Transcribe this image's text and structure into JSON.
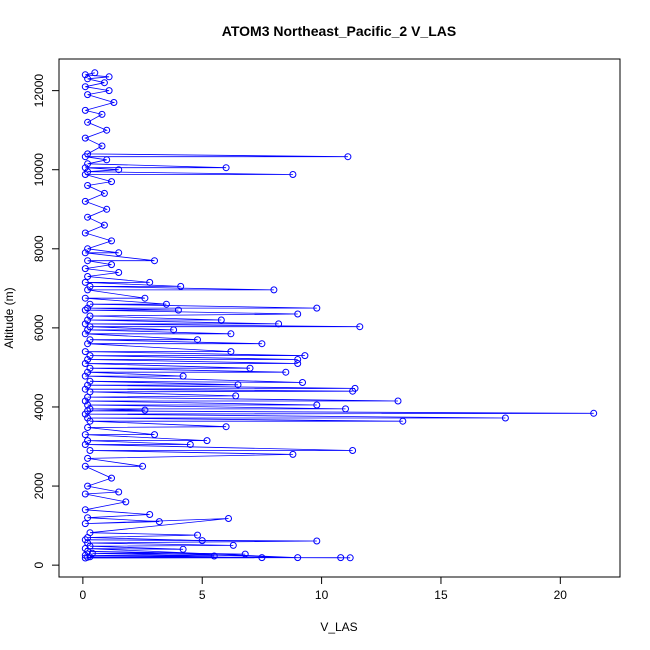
{
  "chart_data": {
    "type": "line",
    "title": "ATOM3 Northeast_Pacific_2 V_LAS",
    "xlabel": "V_LAS",
    "ylabel": "Altitude (m)",
    "xlim": [
      -1.0,
      22.5
    ],
    "ylim": [
      -300,
      12800
    ],
    "xticks": [
      0,
      5,
      10,
      15,
      20
    ],
    "yticks": [
      0,
      2000,
      4000,
      6000,
      8000,
      10000,
      12000
    ],
    "grid": false,
    "legend": "none",
    "series": [
      {
        "color": "#0000ff",
        "marker": "open-circle",
        "points": [
          [
            0.1,
            180
          ],
          [
            10.8,
            190
          ],
          [
            0.2,
            200
          ],
          [
            11.2,
            185
          ],
          [
            0.3,
            210
          ],
          [
            7.5,
            190
          ],
          [
            0.1,
            250
          ],
          [
            5.5,
            230
          ],
          [
            0.4,
            300
          ],
          [
            6.8,
            280
          ],
          [
            0.2,
            350
          ],
          [
            9.0,
            190
          ],
          [
            0.1,
            420
          ],
          [
            4.2,
            400
          ],
          [
            0.3,
            480
          ],
          [
            6.3,
            500
          ],
          [
            0.2,
            560
          ],
          [
            9.8,
            610
          ],
          [
            0.1,
            640
          ],
          [
            5.0,
            620
          ],
          [
            0.2,
            700
          ],
          [
            4.8,
            760
          ],
          [
            0.3,
            820
          ],
          [
            6.1,
            1180
          ],
          [
            0.1,
            1050
          ],
          [
            3.2,
            1100
          ],
          [
            0.2,
            1200
          ],
          [
            2.8,
            1280
          ],
          [
            0.1,
            1400
          ],
          [
            1.8,
            1600
          ],
          [
            0.1,
            1800
          ],
          [
            1.5,
            1850
          ],
          [
            0.2,
            2000
          ],
          [
            1.2,
            2200
          ],
          [
            0.1,
            2500
          ],
          [
            2.5,
            2500
          ],
          [
            0.2,
            2700
          ],
          [
            8.8,
            2800
          ],
          [
            0.3,
            2900
          ],
          [
            11.3,
            2900
          ],
          [
            0.1,
            3050
          ],
          [
            4.5,
            3050
          ],
          [
            0.2,
            3150
          ],
          [
            5.2,
            3150
          ],
          [
            0.1,
            3300
          ],
          [
            3.0,
            3300
          ],
          [
            0.2,
            3480
          ],
          [
            6.0,
            3500
          ],
          [
            0.3,
            3640
          ],
          [
            13.4,
            3640
          ],
          [
            0.2,
            3720
          ],
          [
            17.7,
            3720
          ],
          [
            0.1,
            3820
          ],
          [
            21.4,
            3840
          ],
          [
            0.2,
            3900
          ],
          [
            2.6,
            3920
          ],
          [
            0.3,
            3950
          ],
          [
            11.0,
            3950
          ],
          [
            0.2,
            4050
          ],
          [
            9.8,
            4050
          ],
          [
            0.1,
            4150
          ],
          [
            13.2,
            4150
          ],
          [
            0.2,
            4250
          ],
          [
            6.4,
            4280
          ],
          [
            0.3,
            4380
          ],
          [
            11.3,
            4400
          ],
          [
            0.1,
            4450
          ],
          [
            11.4,
            4470
          ],
          [
            0.2,
            4550
          ],
          [
            6.5,
            4560
          ],
          [
            0.3,
            4650
          ],
          [
            9.2,
            4620
          ],
          [
            0.1,
            4780
          ],
          [
            4.2,
            4780
          ],
          [
            0.2,
            4880
          ],
          [
            8.5,
            4880
          ],
          [
            0.3,
            4980
          ],
          [
            7.0,
            4980
          ],
          [
            0.1,
            5100
          ],
          [
            9.0,
            5100
          ],
          [
            0.2,
            5200
          ],
          [
            9.0,
            5200
          ],
          [
            0.3,
            5300
          ],
          [
            9.3,
            5300
          ],
          [
            0.1,
            5400
          ],
          [
            6.2,
            5400
          ],
          [
            0.2,
            5600
          ],
          [
            7.5,
            5600
          ],
          [
            0.3,
            5700
          ],
          [
            4.8,
            5700
          ],
          [
            0.1,
            5850
          ],
          [
            6.2,
            5850
          ],
          [
            0.2,
            5950
          ],
          [
            3.8,
            5950
          ],
          [
            0.3,
            6030
          ],
          [
            11.6,
            6030
          ],
          [
            0.1,
            6100
          ],
          [
            8.2,
            6100
          ],
          [
            0.2,
            6200
          ],
          [
            5.8,
            6200
          ],
          [
            0.3,
            6300
          ],
          [
            9.0,
            6350
          ],
          [
            0.1,
            6450
          ],
          [
            4.0,
            6450
          ],
          [
            0.2,
            6500
          ],
          [
            9.8,
            6500
          ],
          [
            0.3,
            6600
          ],
          [
            3.5,
            6600
          ],
          [
            0.1,
            6750
          ],
          [
            2.6,
            6750
          ],
          [
            0.2,
            6960
          ],
          [
            8.0,
            6960
          ],
          [
            0.3,
            7050
          ],
          [
            4.1,
            7050
          ],
          [
            0.1,
            7150
          ],
          [
            2.8,
            7150
          ],
          [
            0.2,
            7300
          ],
          [
            1.5,
            7400
          ],
          [
            0.1,
            7500
          ],
          [
            1.2,
            7600
          ],
          [
            0.2,
            7700
          ],
          [
            3.0,
            7700
          ],
          [
            0.1,
            7900
          ],
          [
            1.5,
            7900
          ],
          [
            0.2,
            8000
          ],
          [
            1.2,
            8200
          ],
          [
            0.1,
            8400
          ],
          [
            0.9,
            8600
          ],
          [
            0.2,
            8800
          ],
          [
            1.0,
            9000
          ],
          [
            0.1,
            9200
          ],
          [
            0.9,
            9400
          ],
          [
            0.2,
            9600
          ],
          [
            1.2,
            9700
          ],
          [
            0.1,
            9880
          ],
          [
            8.8,
            9880
          ],
          [
            0.2,
            9950
          ],
          [
            1.5,
            10000
          ],
          [
            0.1,
            10050
          ],
          [
            6.0,
            10050
          ],
          [
            0.2,
            10150
          ],
          [
            1.0,
            10250
          ],
          [
            0.1,
            10330
          ],
          [
            11.1,
            10330
          ],
          [
            0.2,
            10400
          ],
          [
            0.8,
            10600
          ],
          [
            0.1,
            10800
          ],
          [
            1.0,
            11000
          ],
          [
            0.2,
            11200
          ],
          [
            0.8,
            11400
          ],
          [
            0.1,
            11500
          ],
          [
            1.3,
            11700
          ],
          [
            0.2,
            11900
          ],
          [
            1.1,
            12000
          ],
          [
            0.1,
            12100
          ],
          [
            0.9,
            12200
          ],
          [
            0.2,
            12300
          ],
          [
            1.1,
            12350
          ],
          [
            0.1,
            12400
          ],
          [
            0.5,
            12450
          ]
        ]
      }
    ]
  }
}
